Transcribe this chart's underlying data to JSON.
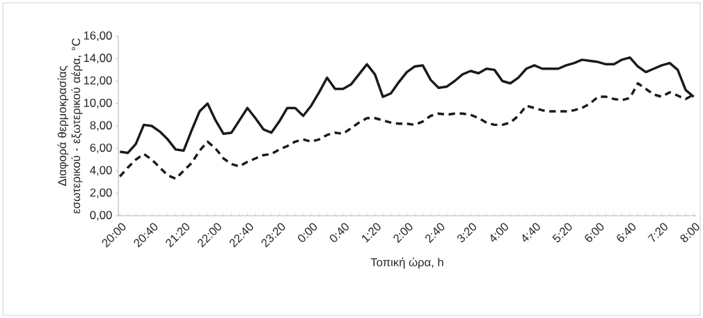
{
  "chart_data": {
    "type": "line",
    "xlabel": "Τοπική ώρα, h",
    "ylabel": "Διαφορά θερμοκρασίας εσωτερικού - εξωτερικού αέρα, °C",
    "categories": [
      "20:00",
      null,
      null,
      null,
      "20:40",
      null,
      null,
      null,
      "21:20",
      null,
      null,
      null,
      "22:00",
      null,
      null,
      null,
      "22:40",
      null,
      null,
      null,
      "23:20",
      null,
      null,
      null,
      "0:00",
      null,
      null,
      null,
      "0:40",
      null,
      null,
      null,
      "1:20",
      null,
      null,
      null,
      "2:00",
      null,
      null,
      null,
      "2:40",
      null,
      null,
      null,
      "3:20",
      null,
      null,
      null,
      "4:00",
      null,
      null,
      null,
      "4:40",
      null,
      null,
      null,
      "5:20",
      null,
      null,
      null,
      "6:00",
      null,
      null,
      null,
      "6:40",
      null,
      null,
      null,
      "7:20",
      null,
      null,
      null,
      "8:00"
    ],
    "ylim": [
      0,
      16
    ],
    "yticks": [
      {
        "value": 0,
        "label": "0,00"
      },
      {
        "value": 2,
        "label": "2,00"
      },
      {
        "value": 4,
        "label": "4,00"
      },
      {
        "value": 6,
        "label": "6,00"
      },
      {
        "value": 8,
        "label": "8,00"
      },
      {
        "value": 10,
        "label": "10,00"
      },
      {
        "value": 12,
        "label": "12,00"
      },
      {
        "value": 14,
        "label": "14,00"
      },
      {
        "value": 16,
        "label": "16,00"
      }
    ],
    "series": [
      {
        "color": "#1a1a1a",
        "line_style": "solid",
        "values": [
          5.7,
          5.6,
          6.4,
          8.1,
          8.0,
          7.5,
          6.8,
          5.9,
          5.8,
          7.6,
          9.3,
          10.0,
          8.5,
          7.3,
          7.4,
          8.5,
          9.6,
          8.7,
          7.7,
          7.4,
          8.4,
          9.6,
          9.6,
          8.9,
          9.8,
          11.0,
          12.3,
          11.3,
          11.3,
          11.7,
          12.6,
          13.5,
          12.6,
          10.6,
          10.9,
          11.9,
          12.8,
          13.3,
          13.4,
          12.1,
          11.4,
          11.5,
          12.0,
          12.6,
          12.9,
          12.7,
          13.1,
          13.0,
          12.0,
          11.8,
          12.3,
          13.1,
          13.4,
          13.1,
          13.1,
          13.1,
          13.4,
          13.6,
          13.9,
          13.8,
          13.7,
          13.5,
          13.5,
          13.9,
          14.1,
          13.3,
          12.8,
          13.1,
          13.4,
          13.6,
          13.0,
          11.2,
          10.6
        ]
      },
      {
        "color": "#1a1a1a",
        "line_style": "dashed",
        "values": [
          3.5,
          4.3,
          5.0,
          5.5,
          5.0,
          4.3,
          3.6,
          3.3,
          4.0,
          4.7,
          5.8,
          6.6,
          6.0,
          5.1,
          4.6,
          4.4,
          4.8,
          5.1,
          5.4,
          5.5,
          5.9,
          6.2,
          6.6,
          6.8,
          6.6,
          6.8,
          7.2,
          7.4,
          7.3,
          7.8,
          8.3,
          8.7,
          8.7,
          8.5,
          8.3,
          8.2,
          8.2,
          8.1,
          8.4,
          8.9,
          9.1,
          9.0,
          9.1,
          9.1,
          9.0,
          8.7,
          8.3,
          8.1,
          8.1,
          8.3,
          8.9,
          9.8,
          9.6,
          9.4,
          9.3,
          9.3,
          9.3,
          9.4,
          9.6,
          10.0,
          10.6,
          10.6,
          10.4,
          10.3,
          10.5,
          11.8,
          11.3,
          10.8,
          10.6,
          11.0,
          10.7,
          10.4,
          10.8
        ]
      }
    ]
  }
}
